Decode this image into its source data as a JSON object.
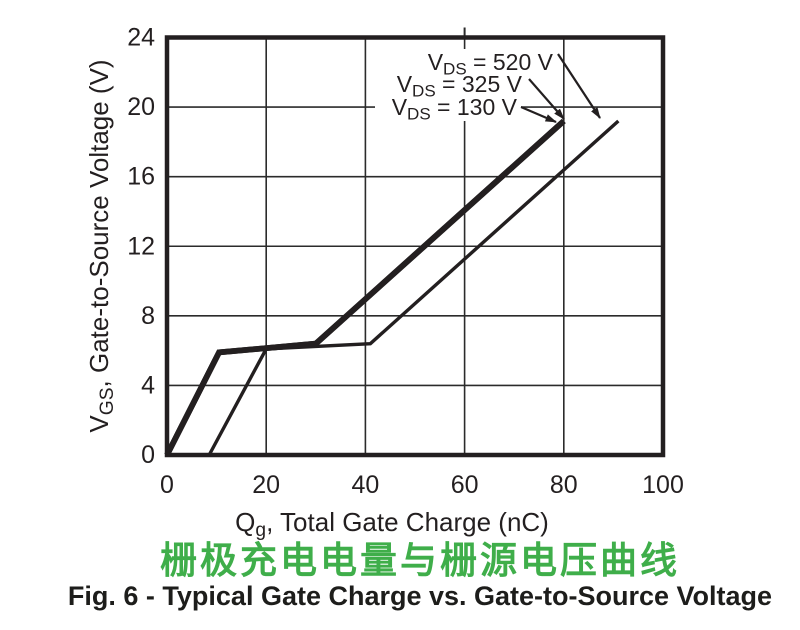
{
  "figure_captions": {
    "chinese_title": "栅极充电电量与栅源电压曲线",
    "chinese_title_color": "#3fae4a",
    "english_title": "Fig. 6 - Typical Gate Charge vs. Gate-to-Source Voltage",
    "english_title_color": "#1d1d1b"
  },
  "chart_data": {
    "type": "line",
    "title": "Fig. 6 - Typical Gate Charge vs. Gate-to-Source Voltage",
    "title_chinese": "栅极充电电量与栅源电压曲线",
    "xlabel": "Qg, Total Gate Charge (nC)",
    "ylabel": "VGS, Gate-to-Source Voltage (V)",
    "xlabel_parts": {
      "pre": "Q",
      "sub": "g",
      "post": ", Total Gate Charge (nC)"
    },
    "ylabel_parts": {
      "pre": "V",
      "sub": "GS",
      "post": ", Gate-to-Source Voltage (V)"
    },
    "xlim": [
      0,
      100
    ],
    "ylim": [
      0,
      24
    ],
    "xticks": [
      0,
      20,
      40,
      60,
      80,
      100
    ],
    "yticks": [
      0,
      4,
      8,
      12,
      16,
      20,
      24
    ],
    "grid": true,
    "legend_position": "annotation-arrows-top-right",
    "line_color": "#231f20",
    "series": [
      {
        "name": "VDS = 130 V",
        "label_parts": {
          "pre": "V",
          "sub": "DS",
          "post": " = 130 V"
        },
        "points": [
          [
            0,
            0
          ],
          [
            10.5,
            5.9
          ],
          [
            30,
            6.4
          ],
          [
            80,
            19.2
          ]
        ]
      },
      {
        "name": "VDS = 325 V",
        "label_parts": {
          "pre": "V",
          "sub": "DS",
          "post": " = 325 V"
        },
        "points": [
          [
            0,
            0
          ],
          [
            10.5,
            5.9
          ],
          [
            30,
            6.4
          ],
          [
            80,
            19.2
          ]
        ]
      },
      {
        "name": "VDS = 520 V",
        "label_parts": {
          "pre": "V",
          "sub": "DS",
          "post": " = 520 V"
        },
        "points": [
          [
            8.5,
            0
          ],
          [
            20,
            6.1
          ],
          [
            41,
            6.4
          ],
          [
            91,
            19.2
          ]
        ]
      }
    ]
  }
}
